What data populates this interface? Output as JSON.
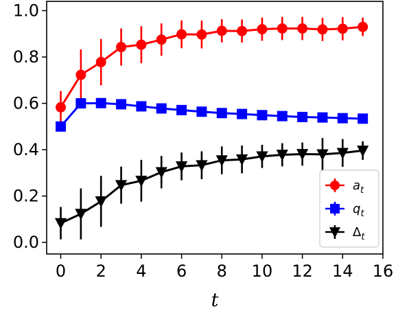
{
  "chart_data": {
    "type": "line",
    "title": "",
    "xlabel": "t",
    "ylabel": "",
    "xlim": [
      -0.7,
      16
    ],
    "ylim": [
      -0.05,
      1.04
    ],
    "x_ticks": [
      0,
      2,
      4,
      6,
      8,
      10,
      12,
      14,
      16
    ],
    "y_ticks": [
      0.0,
      0.2,
      0.4,
      0.6,
      0.8,
      1.0
    ],
    "x_tick_labels": [
      "0",
      "2",
      "4",
      "6",
      "8",
      "10",
      "12",
      "14",
      "16"
    ],
    "y_tick_labels": [
      "0.0",
      "0.2",
      "0.4",
      "0.6",
      "0.8",
      "1.0"
    ],
    "grid": false,
    "legend_position": "bottom-right",
    "x": [
      0,
      1,
      2,
      3,
      4,
      5,
      6,
      7,
      8,
      9,
      10,
      11,
      12,
      13,
      14,
      15
    ],
    "series": [
      {
        "name": "a",
        "subscript": "t",
        "color": "#ff0000",
        "marker": "circle",
        "values": [
          0.583,
          0.723,
          0.778,
          0.843,
          0.853,
          0.875,
          0.898,
          0.897,
          0.913,
          0.912,
          0.92,
          0.923,
          0.923,
          0.919,
          0.922,
          0.93
        ],
        "errors": [
          0.07,
          0.11,
          0.1,
          0.08,
          0.08,
          0.07,
          0.06,
          0.06,
          0.05,
          0.05,
          0.05,
          0.05,
          0.05,
          0.05,
          0.05,
          0.04
        ]
      },
      {
        "name": "q",
        "subscript": "t",
        "color": "#0000ff",
        "marker": "square",
        "values": [
          0.5,
          0.6,
          0.601,
          0.596,
          0.587,
          0.578,
          0.571,
          0.564,
          0.558,
          0.554,
          0.549,
          0.545,
          0.541,
          0.539,
          0.536,
          0.534
        ],
        "errors": [
          0.01,
          0.015,
          0.012,
          0.011,
          0.011,
          0.01,
          0.01,
          0.01,
          0.01,
          0.01,
          0.01,
          0.01,
          0.01,
          0.01,
          0.01,
          0.01
        ]
      },
      {
        "name": "Δ",
        "subscript": "t",
        "color": "#000000",
        "marker": "triangle-down",
        "values": [
          0.083,
          0.123,
          0.177,
          0.247,
          0.266,
          0.303,
          0.328,
          0.333,
          0.354,
          0.358,
          0.371,
          0.378,
          0.381,
          0.38,
          0.386,
          0.396
        ],
        "errors": [
          0.07,
          0.11,
          0.11,
          0.08,
          0.09,
          0.07,
          0.06,
          0.06,
          0.06,
          0.06,
          0.05,
          0.05,
          0.05,
          0.07,
          0.06,
          0.04
        ]
      }
    ]
  }
}
